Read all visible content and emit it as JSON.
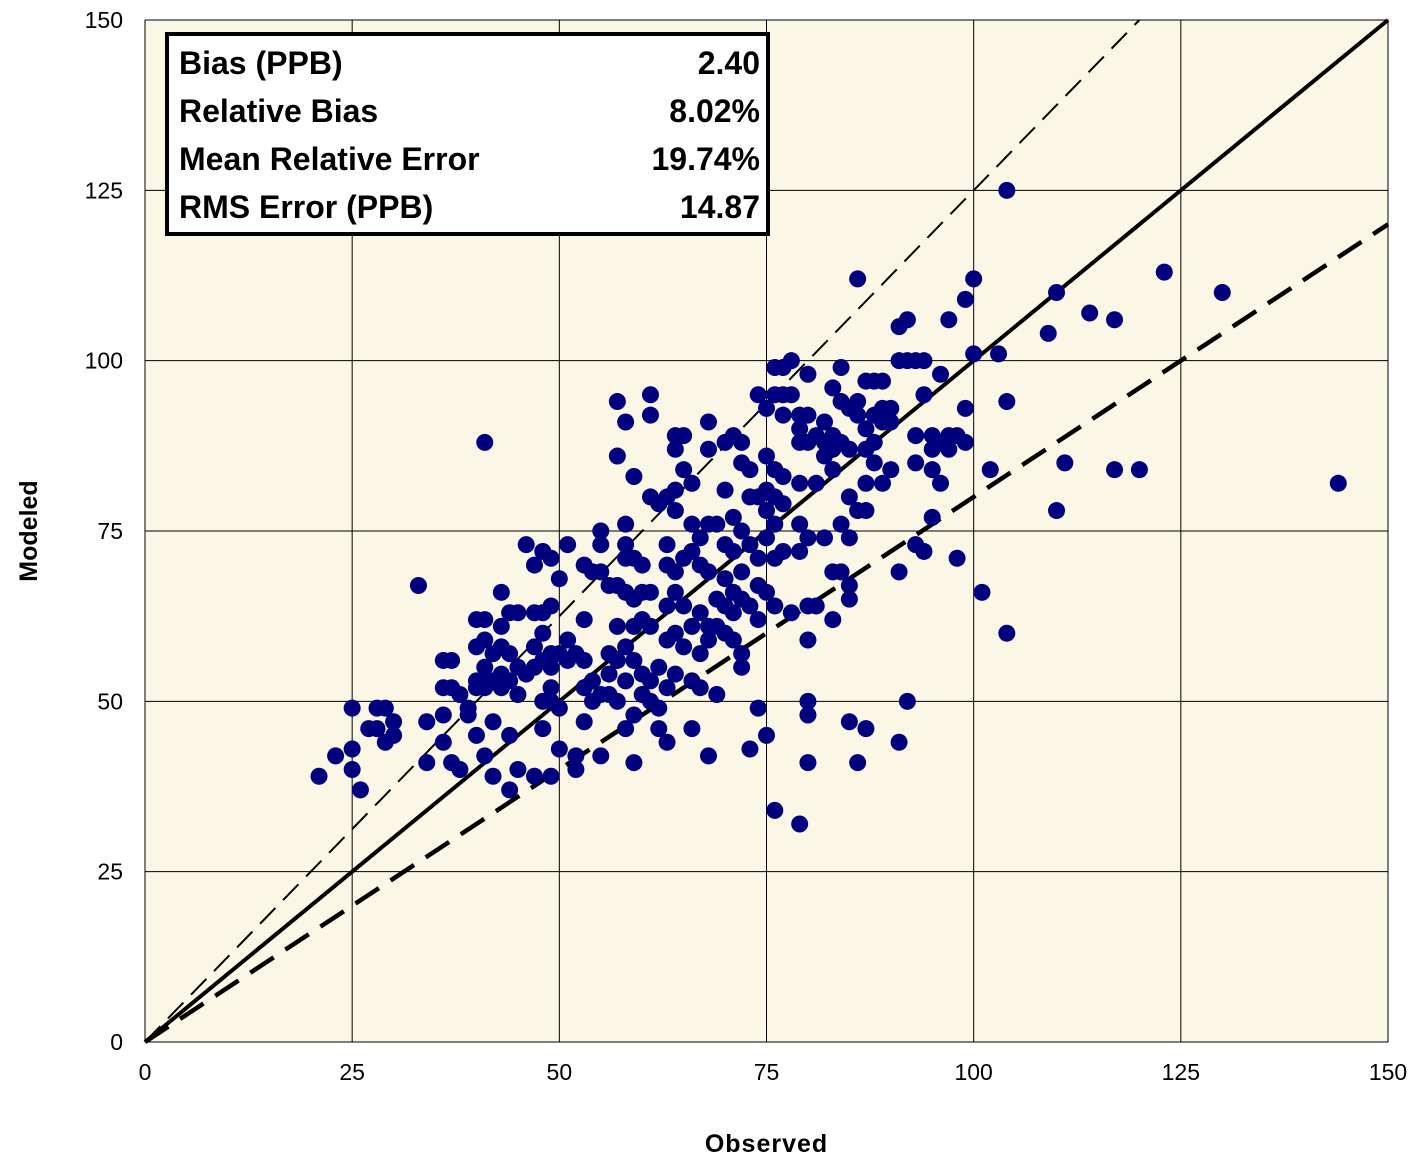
{
  "chart_data": {
    "type": "scatter",
    "title": "",
    "xlabel": "Observed",
    "ylabel": "Modeled",
    "xlim": [
      0,
      150
    ],
    "ylim": [
      0,
      150
    ],
    "xticks": [
      "0",
      "25",
      "50",
      "75",
      "100",
      "125",
      "150"
    ],
    "yticks": [
      "0",
      "25",
      "50",
      "75",
      "100",
      "125",
      "150"
    ],
    "grid": true,
    "background": "#fbf7e6",
    "marker_color": "#00007f",
    "reference_lines": [
      {
        "style": "solid",
        "slope": 1.0
      },
      {
        "style": "thin-dashed",
        "slope": 1.25
      },
      {
        "style": "bold-dashed",
        "slope": 0.8
      }
    ],
    "points": [
      [
        21,
        39
      ],
      [
        23,
        42
      ],
      [
        25,
        49
      ],
      [
        25,
        43
      ],
      [
        25,
        40
      ],
      [
        27,
        46
      ],
      [
        28,
        49
      ],
      [
        26,
        37
      ],
      [
        28,
        46
      ],
      [
        29,
        49
      ],
      [
        29,
        44
      ],
      [
        30,
        47
      ],
      [
        30,
        45
      ],
      [
        33,
        67
      ],
      [
        34,
        47
      ],
      [
        34,
        41
      ],
      [
        36,
        56
      ],
      [
        36,
        52
      ],
      [
        36,
        48
      ],
      [
        37,
        56
      ],
      [
        37,
        52
      ],
      [
        36,
        44
      ],
      [
        37,
        41
      ],
      [
        38,
        51
      ],
      [
        38,
        40
      ],
      [
        39,
        49
      ],
      [
        39,
        48
      ],
      [
        40,
        58
      ],
      [
        40,
        53
      ],
      [
        40,
        52
      ],
      [
        40,
        45
      ],
      [
        40,
        62
      ],
      [
        41,
        88
      ],
      [
        41,
        62
      ],
      [
        41,
        59
      ],
      [
        41,
        55
      ],
      [
        41,
        53
      ],
      [
        41,
        52
      ],
      [
        41,
        42
      ],
      [
        42,
        57
      ],
      [
        42,
        53
      ],
      [
        42,
        47
      ],
      [
        42,
        39
      ],
      [
        43,
        61
      ],
      [
        43,
        58
      ],
      [
        43,
        54
      ],
      [
        43,
        52
      ],
      [
        43,
        66
      ],
      [
        44,
        63
      ],
      [
        44,
        57
      ],
      [
        44,
        53
      ],
      [
        44,
        45
      ],
      [
        44,
        37
      ],
      [
        45,
        63
      ],
      [
        45,
        55
      ],
      [
        45,
        51
      ],
      [
        45,
        40
      ],
      [
        46,
        73
      ],
      [
        46,
        54
      ],
      [
        47,
        70
      ],
      [
        47,
        63
      ],
      [
        47,
        58
      ],
      [
        47,
        55
      ],
      [
        47,
        39
      ],
      [
        48,
        72
      ],
      [
        48,
        63
      ],
      [
        48,
        60
      ],
      [
        48,
        56
      ],
      [
        48,
        50
      ],
      [
        48,
        46
      ],
      [
        49,
        71
      ],
      [
        49,
        64
      ],
      [
        49,
        57
      ],
      [
        49,
        55
      ],
      [
        49,
        52
      ],
      [
        49,
        50
      ],
      [
        49,
        39
      ],
      [
        50,
        68
      ],
      [
        50,
        57
      ],
      [
        50,
        49
      ],
      [
        50,
        43
      ],
      [
        51,
        73
      ],
      [
        51,
        59
      ],
      [
        51,
        56
      ],
      [
        52,
        57
      ],
      [
        52,
        42
      ],
      [
        52,
        40
      ],
      [
        53,
        70
      ],
      [
        53,
        62
      ],
      [
        53,
        56
      ],
      [
        53,
        52
      ],
      [
        53,
        47
      ],
      [
        54,
        69
      ],
      [
        54,
        53
      ],
      [
        54,
        50
      ],
      [
        55,
        75
      ],
      [
        55,
        73
      ],
      [
        55,
        69
      ],
      [
        55,
        51
      ],
      [
        55,
        42
      ],
      [
        56,
        67
      ],
      [
        56,
        57
      ],
      [
        56,
        54
      ],
      [
        56,
        51
      ],
      [
        57,
        94
      ],
      [
        57,
        86
      ],
      [
        57,
        67
      ],
      [
        57,
        61
      ],
      [
        57,
        56
      ],
      [
        57,
        50
      ],
      [
        58,
        91
      ],
      [
        58,
        76
      ],
      [
        58,
        73
      ],
      [
        58,
        71
      ],
      [
        58,
        66
      ],
      [
        58,
        58
      ],
      [
        58,
        53
      ],
      [
        58,
        46
      ],
      [
        59,
        83
      ],
      [
        59,
        71
      ],
      [
        59,
        65
      ],
      [
        59,
        61
      ],
      [
        59,
        56
      ],
      [
        59,
        48
      ],
      [
        59,
        41
      ],
      [
        60,
        70
      ],
      [
        60,
        66
      ],
      [
        60,
        62
      ],
      [
        60,
        54
      ],
      [
        60,
        51
      ],
      [
        61,
        95
      ],
      [
        61,
        92
      ],
      [
        61,
        80
      ],
      [
        61,
        66
      ],
      [
        61,
        61
      ],
      [
        61,
        53
      ],
      [
        61,
        50
      ],
      [
        62,
        79
      ],
      [
        62,
        55
      ],
      [
        62,
        49
      ],
      [
        62,
        46
      ],
      [
        63,
        80
      ],
      [
        63,
        73
      ],
      [
        63,
        70
      ],
      [
        63,
        64
      ],
      [
        63,
        59
      ],
      [
        63,
        52
      ],
      [
        63,
        44
      ],
      [
        64,
        89
      ],
      [
        64,
        87
      ],
      [
        64,
        81
      ],
      [
        64,
        78
      ],
      [
        64,
        69
      ],
      [
        64,
        66
      ],
      [
        64,
        60
      ],
      [
        64,
        54
      ],
      [
        65,
        89
      ],
      [
        65,
        84
      ],
      [
        65,
        71
      ],
      [
        65,
        64
      ],
      [
        65,
        58
      ],
      [
        66,
        82
      ],
      [
        66,
        76
      ],
      [
        66,
        72
      ],
      [
        66,
        61
      ],
      [
        66,
        53
      ],
      [
        66,
        46
      ],
      [
        67,
        74
      ],
      [
        67,
        70
      ],
      [
        67,
        63
      ],
      [
        67,
        57
      ],
      [
        67,
        52
      ],
      [
        68,
        91
      ],
      [
        68,
        87
      ],
      [
        68,
        76
      ],
      [
        68,
        69
      ],
      [
        68,
        61
      ],
      [
        68,
        59
      ],
      [
        68,
        42
      ],
      [
        69,
        76
      ],
      [
        69,
        65
      ],
      [
        69,
        61
      ],
      [
        69,
        51
      ],
      [
        70,
        88
      ],
      [
        70,
        81
      ],
      [
        70,
        73
      ],
      [
        70,
        68
      ],
      [
        70,
        64
      ],
      [
        70,
        60
      ],
      [
        71,
        89
      ],
      [
        71,
        77
      ],
      [
        71,
        72
      ],
      [
        71,
        66
      ],
      [
        71,
        63
      ],
      [
        71,
        59
      ],
      [
        72,
        88
      ],
      [
        72,
        85
      ],
      [
        72,
        75
      ],
      [
        72,
        69
      ],
      [
        72,
        65
      ],
      [
        72,
        57
      ],
      [
        72,
        55
      ],
      [
        73,
        84
      ],
      [
        73,
        80
      ],
      [
        73,
        73
      ],
      [
        73,
        64
      ],
      [
        73,
        43
      ],
      [
        74,
        95
      ],
      [
        74,
        80
      ],
      [
        74,
        71
      ],
      [
        74,
        67
      ],
      [
        74,
        62
      ],
      [
        74,
        49
      ],
      [
        75,
        93
      ],
      [
        75,
        86
      ],
      [
        75,
        81
      ],
      [
        75,
        78
      ],
      [
        75,
        74
      ],
      [
        75,
        66
      ],
      [
        75,
        45
      ],
      [
        76,
        99
      ],
      [
        76,
        95
      ],
      [
        76,
        84
      ],
      [
        76,
        80
      ],
      [
        76,
        76
      ],
      [
        76,
        71
      ],
      [
        76,
        64
      ],
      [
        76,
        34
      ],
      [
        77,
        99
      ],
      [
        77,
        95
      ],
      [
        77,
        92
      ],
      [
        77,
        83
      ],
      [
        77,
        79
      ],
      [
        77,
        72
      ],
      [
        78,
        100
      ],
      [
        78,
        95
      ],
      [
        78,
        63
      ],
      [
        79,
        92
      ],
      [
        79,
        90
      ],
      [
        79,
        88
      ],
      [
        79,
        82
      ],
      [
        79,
        76
      ],
      [
        79,
        72
      ],
      [
        79,
        32
      ],
      [
        80,
        98
      ],
      [
        80,
        92
      ],
      [
        80,
        88
      ],
      [
        80,
        74
      ],
      [
        80,
        64
      ],
      [
        80,
        59
      ],
      [
        80,
        50
      ],
      [
        80,
        48
      ],
      [
        80,
        41
      ],
      [
        81,
        89
      ],
      [
        81,
        82
      ],
      [
        81,
        64
      ],
      [
        82,
        91
      ],
      [
        82,
        88
      ],
      [
        82,
        86
      ],
      [
        82,
        74
      ],
      [
        83,
        96
      ],
      [
        83,
        89
      ],
      [
        83,
        87
      ],
      [
        83,
        84
      ],
      [
        83,
        69
      ],
      [
        83,
        62
      ],
      [
        84,
        99
      ],
      [
        84,
        94
      ],
      [
        84,
        88
      ],
      [
        84,
        76
      ],
      [
        84,
        69
      ],
      [
        85,
        93
      ],
      [
        85,
        87
      ],
      [
        85,
        80
      ],
      [
        85,
        74
      ],
      [
        85,
        67
      ],
      [
        85,
        65
      ],
      [
        85,
        47
      ],
      [
        86,
        112
      ],
      [
        86,
        94
      ],
      [
        86,
        92
      ],
      [
        86,
        78
      ],
      [
        86,
        41
      ],
      [
        87,
        97
      ],
      [
        87,
        90
      ],
      [
        87,
        87
      ],
      [
        87,
        82
      ],
      [
        87,
        78
      ],
      [
        87,
        46
      ],
      [
        88,
        97
      ],
      [
        88,
        92
      ],
      [
        88,
        88
      ],
      [
        88,
        85
      ],
      [
        89,
        97
      ],
      [
        89,
        93
      ],
      [
        89,
        91
      ],
      [
        89,
        82
      ],
      [
        90,
        93
      ],
      [
        90,
        91
      ],
      [
        90,
        84
      ],
      [
        91,
        105
      ],
      [
        91,
        100
      ],
      [
        91,
        69
      ],
      [
        91,
        44
      ],
      [
        92,
        106
      ],
      [
        92,
        100
      ],
      [
        92,
        50
      ],
      [
        93,
        100
      ],
      [
        93,
        89
      ],
      [
        93,
        85
      ],
      [
        93,
        73
      ],
      [
        94,
        100
      ],
      [
        94,
        95
      ],
      [
        94,
        72
      ],
      [
        95,
        89
      ],
      [
        95,
        87
      ],
      [
        95,
        84
      ],
      [
        95,
        77
      ],
      [
        96,
        98
      ],
      [
        96,
        88
      ],
      [
        96,
        82
      ],
      [
        97,
        106
      ],
      [
        97,
        89
      ],
      [
        97,
        87
      ],
      [
        98,
        89
      ],
      [
        98,
        71
      ],
      [
        99,
        109
      ],
      [
        99,
        93
      ],
      [
        99,
        88
      ],
      [
        100,
        112
      ],
      [
        100,
        101
      ],
      [
        101,
        66
      ],
      [
        102,
        84
      ],
      [
        103,
        101
      ],
      [
        104,
        125
      ],
      [
        104,
        94
      ],
      [
        104,
        60
      ],
      [
        109,
        104
      ],
      [
        110,
        110
      ],
      [
        110,
        78
      ],
      [
        111,
        85
      ],
      [
        114,
        107
      ],
      [
        117,
        106
      ],
      [
        117,
        84
      ],
      [
        120,
        84
      ],
      [
        123,
        113
      ],
      [
        130,
        110
      ],
      [
        144,
        82
      ]
    ]
  },
  "stats": [
    {
      "label": "Bias (PPB)",
      "value": "2.40"
    },
    {
      "label": "Relative Bias",
      "value": "8.02%"
    },
    {
      "label": "Mean Relative Error",
      "value": "19.74%"
    },
    {
      "label": "RMS Error (PPB)",
      "value": "14.87"
    }
  ]
}
